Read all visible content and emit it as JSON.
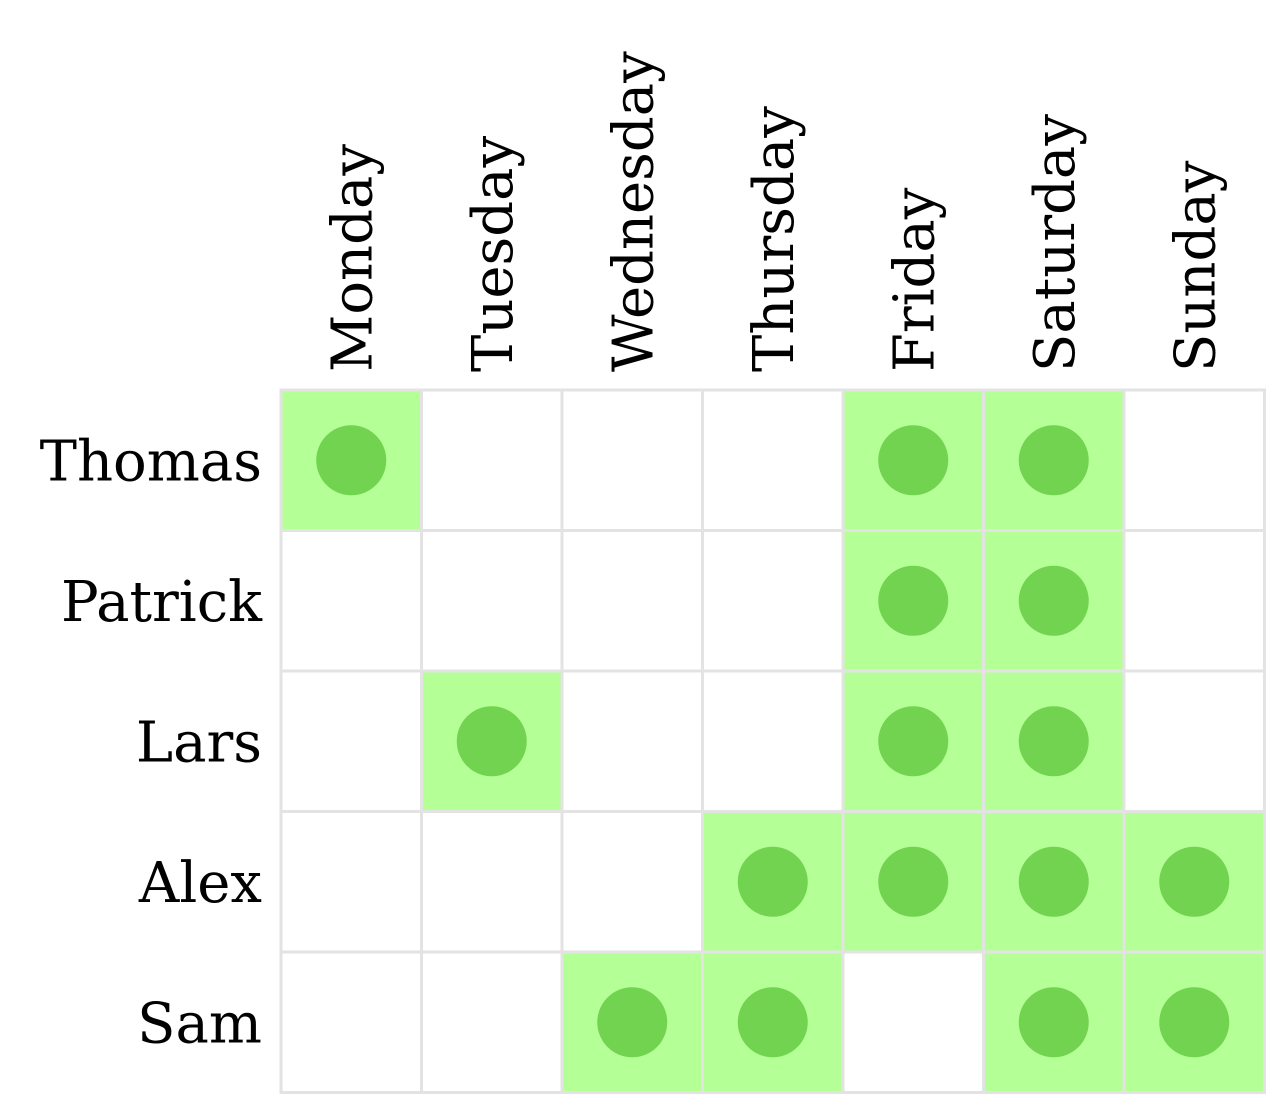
{
  "chart_data": {
    "type": "heatmap",
    "title": "",
    "xlabel": "",
    "ylabel": "",
    "columns": [
      "Monday",
      "Tuesday",
      "Wednesday",
      "Thursday",
      "Friday",
      "Saturday",
      "Sunday"
    ],
    "rows": [
      "Thomas",
      "Patrick",
      "Lars",
      "Alex",
      "Sam"
    ],
    "values": [
      [
        1,
        0,
        0,
        0,
        1,
        1,
        0
      ],
      [
        0,
        0,
        0,
        0,
        1,
        1,
        0
      ],
      [
        0,
        1,
        0,
        0,
        1,
        1,
        0
      ],
      [
        0,
        0,
        0,
        1,
        1,
        1,
        1
      ],
      [
        0,
        0,
        1,
        1,
        0,
        1,
        1
      ]
    ],
    "colors": {
      "cell_on": "#b4ff96",
      "cell_off": "#ffffff",
      "dot": "#72d350",
      "grid": "#e3e3e3"
    }
  }
}
